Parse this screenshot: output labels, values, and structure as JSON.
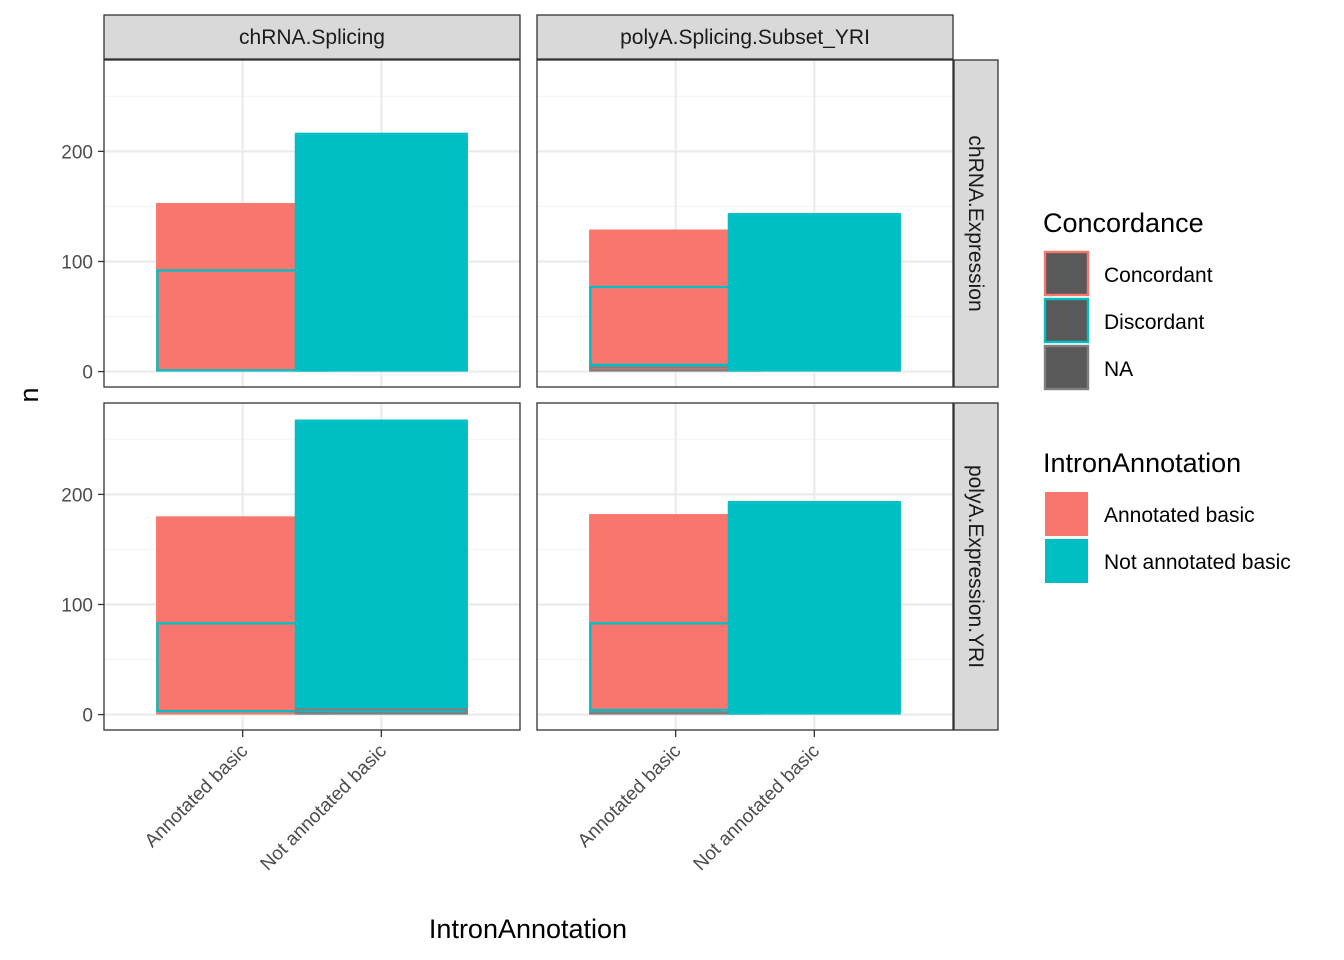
{
  "chart_data": {
    "type": "bar",
    "subtype": "faceted stacked bar (facet_grid)",
    "xlabel": "IntronAnnotation",
    "ylabel": "n",
    "categories": [
      "Annotated basic",
      "Not annotated basic"
    ],
    "y_ticks": [
      0,
      100,
      200
    ],
    "ylim": [
      -14,
      283
    ],
    "grid": true,
    "legend_placement": "right",
    "col_facets": [
      "chRNA.Splicing",
      "polyA.Splicing.Subset_YRI"
    ],
    "row_facets": [
      "chRNA.Expression",
      "polyA.Expression.YRI"
    ],
    "stack_order": [
      "Concordant",
      "Discordant",
      "NA"
    ],
    "panels": [
      {
        "row": 0,
        "col": 0,
        "bars": [
          {
            "category": "Annotated basic",
            "fill": "Annotated basic",
            "segments": {
              "Concordant": 60,
              "Discordant": 93,
              "NA": 0
            }
          },
          {
            "category": "Not annotated basic",
            "fill": "Not annotated basic",
            "segments": {
              "Concordant": 2,
              "Discordant": 215,
              "NA": 0
            }
          }
        ]
      },
      {
        "row": 0,
        "col": 1,
        "bars": [
          {
            "category": "Annotated basic",
            "fill": "Annotated basic",
            "segments": {
              "Concordant": 51,
              "Discordant": 73,
              "NA": 5
            }
          },
          {
            "category": "Not annotated basic",
            "fill": "Not annotated basic",
            "segments": {
              "Concordant": 1,
              "Discordant": 141,
              "NA": 2
            }
          }
        ]
      },
      {
        "row": 1,
        "col": 0,
        "bars": [
          {
            "category": "Annotated basic",
            "fill": "Annotated basic",
            "segments": {
              "Concordant": 96,
              "Discordant": 82,
              "NA": 2
            }
          },
          {
            "category": "Not annotated basic",
            "fill": "Not annotated basic",
            "segments": {
              "Concordant": 2,
              "Discordant": 260,
              "NA": 6
            }
          }
        ]
      },
      {
        "row": 1,
        "col": 1,
        "bars": [
          {
            "category": "Annotated basic",
            "fill": "Annotated basic",
            "segments": {
              "Concordant": 98,
              "Discordant": 81,
              "NA": 3
            }
          },
          {
            "category": "Not annotated basic",
            "fill": "Not annotated basic",
            "segments": {
              "Concordant": 2,
              "Discordant": 190,
              "NA": 2
            }
          }
        ]
      }
    ],
    "legends": [
      {
        "title": "Concordance",
        "aesthetic": "color",
        "items": [
          {
            "label": "Concordant",
            "color": "#F8766D"
          },
          {
            "label": "Discordant",
            "color": "#00BFC4"
          },
          {
            "label": "NA",
            "color": "#7F7F7F"
          }
        ],
        "key_fill": "#595959"
      },
      {
        "title": "IntronAnnotation",
        "aesthetic": "fill",
        "items": [
          {
            "label": "Annotated basic",
            "color": "#F8766D"
          },
          {
            "label": "Not annotated basic",
            "color": "#00BFC4"
          }
        ]
      }
    ],
    "colors": {
      "Annotated basic": "#F8766D",
      "Not annotated basic": "#00BFC4",
      "Concordant": "#F8766D",
      "Discordant": "#00BFC4",
      "NA": "#7F7F7F",
      "strip_bg": "#D9D9D9",
      "grid_major": "#EBEBEB",
      "grid_minor": "#F5F5F5"
    }
  }
}
